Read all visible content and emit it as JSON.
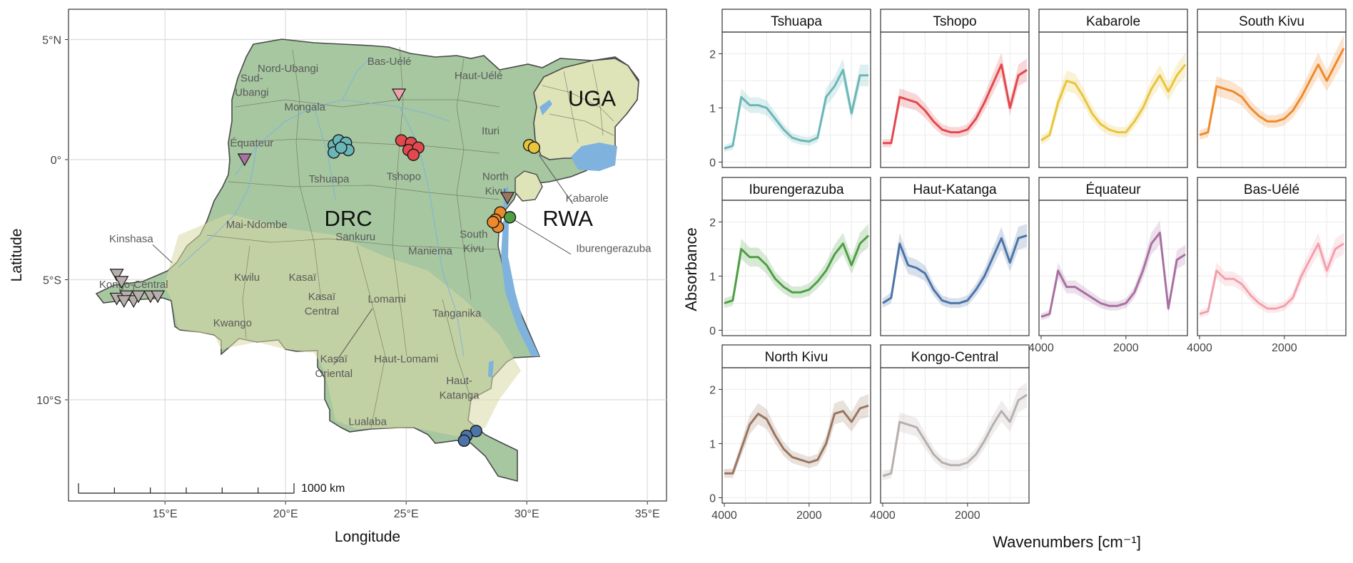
{
  "map": {
    "x_axis_title": "Longitude",
    "y_axis_title": "Latitude",
    "x_ticks": [
      {
        "value": 15,
        "label": "15°E"
      },
      {
        "value": 20,
        "label": "20°E"
      },
      {
        "value": 25,
        "label": "25°E"
      },
      {
        "value": 30,
        "label": "30°E"
      },
      {
        "value": 35,
        "label": "35°E"
      }
    ],
    "y_ticks": [
      {
        "value": 5,
        "label": "5°N"
      },
      {
        "value": 0,
        "label": "0°"
      },
      {
        "value": -5,
        "label": "5°S"
      },
      {
        "value": -10,
        "label": "10°S"
      }
    ],
    "scale_bar_label": "1000 km",
    "country_labels": [
      {
        "text": "DRC",
        "lon": 22.6,
        "lat": -2.4
      },
      {
        "text": "UGA",
        "lon": 32.7,
        "lat": 2.6
      },
      {
        "text": "RWA",
        "lon": 31.7,
        "lat": -2.4
      }
    ],
    "province_labels": [
      {
        "text": "Nord-Ubangi",
        "lon": 20.1,
        "lat": 3.8
      },
      {
        "text": "Bas-Uélé",
        "lon": 24.3,
        "lat": 4.1
      },
      {
        "text": "Haut-Uélé",
        "lon": 28.0,
        "lat": 3.5
      },
      {
        "text": "Sud-",
        "lon": 18.6,
        "lat": 3.4
      },
      {
        "text": "Ubangi",
        "lon": 18.6,
        "lat": 2.8
      },
      {
        "text": "Mongala",
        "lon": 20.8,
        "lat": 2.2
      },
      {
        "text": "Ituri",
        "lon": 28.5,
        "lat": 1.2
      },
      {
        "text": "Équateur",
        "lon": 18.6,
        "lat": 0.7
      },
      {
        "text": "Tshuapa",
        "lon": 21.8,
        "lat": -0.8
      },
      {
        "text": "Tshopo",
        "lon": 24.9,
        "lat": -0.7
      },
      {
        "text": "North",
        "lon": 28.7,
        "lat": -0.7
      },
      {
        "text": "Kivu",
        "lon": 28.7,
        "lat": -1.3
      },
      {
        "text": "Mai-Ndombe",
        "lon": 18.8,
        "lat": -2.7
      },
      {
        "text": "Sankuru",
        "lon": 22.9,
        "lat": -3.2
      },
      {
        "text": "Maniema",
        "lon": 26.0,
        "lat": -3.8
      },
      {
        "text": "South",
        "lon": 27.8,
        "lat": -3.1
      },
      {
        "text": "Kivu",
        "lon": 27.8,
        "lat": -3.7
      },
      {
        "text": "Kwilu",
        "lon": 18.4,
        "lat": -4.9
      },
      {
        "text": "Kasaï",
        "lon": 20.7,
        "lat": -4.9
      },
      {
        "text": "Kasaï",
        "lon": 21.5,
        "lat": -5.7
      },
      {
        "text": "Central",
        "lon": 21.5,
        "lat": -6.3
      },
      {
        "text": "Lomami",
        "lon": 24.2,
        "lat": -5.8
      },
      {
        "text": "Tanganika",
        "lon": 27.1,
        "lat": -6.4
      },
      {
        "text": "Kwango",
        "lon": 17.8,
        "lat": -6.8
      },
      {
        "text": "Haut-Lomami",
        "lon": 25.0,
        "lat": -8.3
      },
      {
        "text": "Haut-",
        "lon": 27.2,
        "lat": -9.2
      },
      {
        "text": "Katanga",
        "lon": 27.2,
        "lat": -9.8
      },
      {
        "text": "Lualaba",
        "lon": 23.4,
        "lat": -10.9
      }
    ],
    "callouts": [
      {
        "text": "Kinshasa",
        "lon": 13.6,
        "lat": -3.3,
        "to_lon": 15.3,
        "to_lat": -4.3
      },
      {
        "text": "Kongo-Central",
        "lon": 13.7,
        "lat": -5.2,
        "to_lon": 13.7,
        "to_lat": -5.2
      },
      {
        "text": "Kasaï",
        "lon": 22.0,
        "lat": -8.3,
        "to_lon": 23.6,
        "to_lat": -6.2
      },
      {
        "text": "Oriental",
        "lon": 22.0,
        "lat": -8.9,
        "to_lon": null,
        "to_lat": null
      },
      {
        "text": "Kabarole",
        "lon": 32.5,
        "lat": -1.6,
        "to_lon": 30.5,
        "to_lat": 0.2
      },
      {
        "text": "Iburengerazuba",
        "lon": 33.6,
        "lat": -3.7,
        "to_lon": 29.3,
        "to_lat": -2.4
      }
    ],
    "sample_sites": [
      {
        "province": "Tshuapa",
        "shape": "circle",
        "color": "#6ab7b8",
        "points": [
          [
            22.0,
            0.6
          ],
          [
            22.2,
            0.8
          ],
          [
            22.5,
            0.7
          ],
          [
            22.0,
            0.3
          ],
          [
            22.6,
            0.4
          ],
          [
            22.3,
            0.5
          ]
        ]
      },
      {
        "province": "Tshopo",
        "shape": "circle",
        "color": "#e2484d",
        "points": [
          [
            24.8,
            0.8
          ],
          [
            25.2,
            0.7
          ],
          [
            25.1,
            0.4
          ],
          [
            25.5,
            0.5
          ],
          [
            25.3,
            0.2
          ]
        ]
      },
      {
        "province": "Kabarole",
        "shape": "circle",
        "color": "#e8c53a",
        "points": [
          [
            30.1,
            0.6
          ],
          [
            30.3,
            0.5
          ]
        ]
      },
      {
        "province": "South Kivu",
        "shape": "circle",
        "color": "#ef8a2a",
        "points": [
          [
            28.9,
            -2.2
          ],
          [
            28.7,
            -2.5
          ],
          [
            28.8,
            -2.8
          ],
          [
            28.6,
            -2.6
          ]
        ]
      },
      {
        "province": "Iburengerazuba",
        "shape": "circle",
        "color": "#4f9f45",
        "points": [
          [
            29.3,
            -2.4
          ]
        ]
      },
      {
        "province": "Haut-Katanga",
        "shape": "circle",
        "color": "#4c74a8",
        "points": [
          [
            27.9,
            -11.3
          ],
          [
            27.5,
            -11.5
          ],
          [
            27.4,
            -11.7
          ]
        ]
      },
      {
        "province": "Équateur",
        "shape": "triangle",
        "color": "#a970a2",
        "points": [
          [
            18.3,
            0.0
          ]
        ]
      },
      {
        "province": "Bas-Uélé",
        "shape": "triangle",
        "color": "#f3a0ad",
        "points": [
          [
            24.7,
            2.7
          ]
        ]
      },
      {
        "province": "North Kivu",
        "shape": "triangle",
        "color": "#9a7560",
        "points": [
          [
            29.2,
            -1.6
          ]
        ]
      },
      {
        "province": "Kongo-Central",
        "shape": "triangle",
        "color": "#b7afab",
        "points": [
          [
            13.0,
            -4.8
          ],
          [
            13.2,
            -5.1
          ],
          [
            13.0,
            -5.8
          ],
          [
            13.4,
            -5.7
          ],
          [
            13.7,
            -5.9
          ],
          [
            13.3,
            -5.9
          ],
          [
            13.9,
            -5.7
          ],
          [
            14.4,
            -5.7
          ],
          [
            14.7,
            -5.7
          ]
        ]
      }
    ]
  },
  "chart_data": {
    "type": "line",
    "panel_layout": "4 columns x 3 rows, shared axes",
    "xlabel": "Wavenumbers [cm⁻¹]",
    "ylabel": "Absorbance",
    "x_axis": {
      "reversed": true,
      "range": [
        4050,
        550
      ],
      "ticks": [
        4000,
        2000
      ]
    },
    "y_axis": {
      "range": [
        -0.1,
        2.4
      ],
      "ticks": [
        0,
        1,
        2
      ]
    },
    "grid": true,
    "sampling_x": [
      4000,
      3800,
      3600,
      3400,
      3200,
      3000,
      2800,
      2600,
      2400,
      2200,
      2000,
      1800,
      1600,
      1400,
      1200,
      1000,
      800,
      600
    ],
    "panels": [
      {
        "title": "Tshuapa",
        "color": "#6ab7b8",
        "values": [
          0.25,
          0.3,
          1.2,
          1.05,
          1.05,
          1.0,
          0.8,
          0.6,
          0.45,
          0.4,
          0.38,
          0.45,
          1.2,
          1.4,
          1.7,
          0.9,
          1.6,
          1.6
        ]
      },
      {
        "title": "Tshopo",
        "color": "#e2484d",
        "values": [
          0.35,
          0.35,
          1.2,
          1.15,
          1.1,
          0.95,
          0.75,
          0.6,
          0.55,
          0.55,
          0.6,
          0.8,
          1.1,
          1.45,
          1.8,
          1.0,
          1.6,
          1.7
        ]
      },
      {
        "title": "Kabarole",
        "color": "#e8c53a",
        "values": [
          0.4,
          0.5,
          1.1,
          1.5,
          1.45,
          1.2,
          0.9,
          0.7,
          0.6,
          0.55,
          0.55,
          0.75,
          1.0,
          1.35,
          1.6,
          1.3,
          1.6,
          1.8
        ]
      },
      {
        "title": "South Kivu",
        "color": "#ef8a2a",
        "values": [
          0.5,
          0.55,
          1.4,
          1.35,
          1.3,
          1.2,
          1.0,
          0.85,
          0.75,
          0.75,
          0.8,
          0.95,
          1.2,
          1.5,
          1.8,
          1.5,
          1.8,
          2.1
        ]
      },
      {
        "title": "Iburengerazuba",
        "color": "#4f9f45",
        "values": [
          0.5,
          0.55,
          1.5,
          1.35,
          1.35,
          1.2,
          0.95,
          0.8,
          0.7,
          0.7,
          0.75,
          0.9,
          1.1,
          1.4,
          1.6,
          1.2,
          1.6,
          1.75
        ]
      },
      {
        "title": "Haut-Katanga",
        "color": "#4c74a8",
        "values": [
          0.5,
          0.6,
          1.6,
          1.2,
          1.15,
          1.05,
          0.75,
          0.55,
          0.5,
          0.5,
          0.55,
          0.75,
          1.0,
          1.35,
          1.7,
          1.25,
          1.7,
          1.75
        ]
      },
      {
        "title": "Équateur",
        "color": "#a970a2",
        "values": [
          0.25,
          0.3,
          1.1,
          0.8,
          0.8,
          0.7,
          0.6,
          0.5,
          0.45,
          0.45,
          0.5,
          0.7,
          1.1,
          1.6,
          1.8,
          0.4,
          1.3,
          1.4
        ]
      },
      {
        "title": "Bas-Uélé",
        "color": "#f3a0ad",
        "values": [
          0.3,
          0.35,
          1.1,
          0.95,
          0.95,
          0.85,
          0.65,
          0.5,
          0.4,
          0.4,
          0.45,
          0.6,
          1.0,
          1.3,
          1.6,
          1.1,
          1.5,
          1.6
        ]
      },
      {
        "title": "North Kivu",
        "color": "#9a7560",
        "values": [
          0.45,
          0.45,
          0.9,
          1.35,
          1.55,
          1.45,
          1.15,
          0.9,
          0.75,
          0.7,
          0.65,
          0.7,
          1.0,
          1.55,
          1.6,
          1.4,
          1.65,
          1.7
        ]
      },
      {
        "title": "Kongo-Central",
        "color": "#b7afab",
        "values": [
          0.4,
          0.45,
          1.4,
          1.35,
          1.3,
          1.05,
          0.8,
          0.65,
          0.6,
          0.6,
          0.65,
          0.8,
          1.05,
          1.35,
          1.6,
          1.4,
          1.8,
          1.9
        ]
      }
    ]
  }
}
